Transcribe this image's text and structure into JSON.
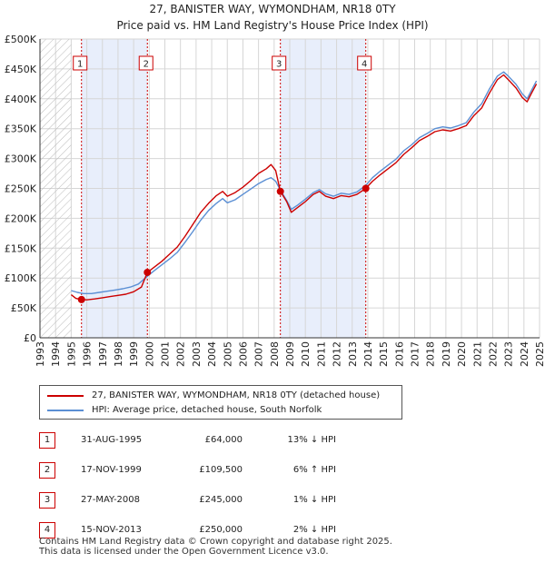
{
  "chart_data": {
    "type": "line",
    "title": "27, BANISTER WAY, WYMONDHAM, NR18 0TY",
    "subtitle": "Price paid vs. HM Land Registry's House Price Index (HPI)",
    "xlabel": "",
    "ylabel": "",
    "xlim": [
      1993,
      2025
    ],
    "ylim": [
      0,
      500000
    ],
    "x_ticks": [
      "1993",
      "1994",
      "1995",
      "1996",
      "1997",
      "1998",
      "1999",
      "2000",
      "2001",
      "2002",
      "2003",
      "2004",
      "2005",
      "2006",
      "2007",
      "2008",
      "2009",
      "2010",
      "2011",
      "2012",
      "2013",
      "2014",
      "2015",
      "2016",
      "2017",
      "2018",
      "2019",
      "2020",
      "2021",
      "2022",
      "2023",
      "2024",
      "2025"
    ],
    "y_ticks": [
      {
        "value": 0,
        "label": "£0"
      },
      {
        "value": 50000,
        "label": "£50K"
      },
      {
        "value": 100000,
        "label": "£100K"
      },
      {
        "value": 150000,
        "label": "£150K"
      },
      {
        "value": 200000,
        "label": "£200K"
      },
      {
        "value": 250000,
        "label": "£250K"
      },
      {
        "value": 300000,
        "label": "£300K"
      },
      {
        "value": 350000,
        "label": "£350K"
      },
      {
        "value": 400000,
        "label": "£400K"
      },
      {
        "value": 450000,
        "label": "£450K"
      },
      {
        "value": 500000,
        "label": "£500K"
      }
    ],
    "data_start": 1995.0,
    "shaded_periods": [
      [
        1995.66,
        1999.88
      ],
      [
        2008.4,
        2013.87
      ]
    ],
    "series": [
      {
        "name": "27, BANISTER WAY, WYMONDHAM, NR18 0TY (detached house)",
        "color": "#cc0000",
        "points": [
          [
            1995.0,
            72000
          ],
          [
            1995.3,
            66000
          ],
          [
            1995.66,
            64000
          ],
          [
            1996.0,
            63500
          ],
          [
            1996.5,
            65000
          ],
          [
            1997.0,
            67000
          ],
          [
            1997.5,
            69000
          ],
          [
            1998.0,
            71000
          ],
          [
            1998.5,
            73000
          ],
          [
            1999.0,
            77000
          ],
          [
            1999.5,
            85000
          ],
          [
            1999.88,
            109500
          ],
          [
            2000.3,
            118000
          ],
          [
            2000.8,
            128000
          ],
          [
            2001.3,
            140000
          ],
          [
            2001.8,
            152000
          ],
          [
            2002.3,
            170000
          ],
          [
            2002.8,
            190000
          ],
          [
            2003.3,
            210000
          ],
          [
            2003.8,
            225000
          ],
          [
            2004.3,
            238000
          ],
          [
            2004.7,
            245000
          ],
          [
            2005.0,
            237000
          ],
          [
            2005.5,
            243000
          ],
          [
            2006.0,
            252000
          ],
          [
            2006.5,
            263000
          ],
          [
            2007.0,
            275000
          ],
          [
            2007.5,
            283000
          ],
          [
            2007.8,
            290000
          ],
          [
            2008.1,
            280000
          ],
          [
            2008.4,
            245000
          ],
          [
            2008.8,
            228000
          ],
          [
            2009.1,
            210000
          ],
          [
            2009.5,
            218000
          ],
          [
            2010.0,
            228000
          ],
          [
            2010.5,
            240000
          ],
          [
            2010.9,
            245000
          ],
          [
            2011.3,
            237000
          ],
          [
            2011.8,
            233000
          ],
          [
            2012.3,
            238000
          ],
          [
            2012.8,
            236000
          ],
          [
            2013.3,
            240000
          ],
          [
            2013.87,
            250000
          ],
          [
            2014.3,
            262000
          ],
          [
            2014.8,
            273000
          ],
          [
            2015.3,
            283000
          ],
          [
            2015.8,
            293000
          ],
          [
            2016.3,
            307000
          ],
          [
            2016.8,
            318000
          ],
          [
            2017.3,
            330000
          ],
          [
            2017.8,
            337000
          ],
          [
            2018.3,
            345000
          ],
          [
            2018.8,
            348000
          ],
          [
            2019.3,
            346000
          ],
          [
            2019.8,
            350000
          ],
          [
            2020.3,
            355000
          ],
          [
            2020.8,
            372000
          ],
          [
            2021.3,
            385000
          ],
          [
            2021.8,
            410000
          ],
          [
            2022.3,
            432000
          ],
          [
            2022.7,
            440000
          ],
          [
            2023.0,
            432000
          ],
          [
            2023.5,
            418000
          ],
          [
            2023.9,
            402000
          ],
          [
            2024.2,
            395000
          ],
          [
            2024.5,
            410000
          ],
          [
            2024.8,
            425000
          ]
        ]
      },
      {
        "name": "HPI: Average price, detached house, South Norfolk",
        "color": "#5b8fd4",
        "points": [
          [
            1995.0,
            79000
          ],
          [
            1995.4,
            76000
          ],
          [
            1995.8,
            74000
          ],
          [
            1996.3,
            74000
          ],
          [
            1996.8,
            76000
          ],
          [
            1997.3,
            78000
          ],
          [
            1997.8,
            80000
          ],
          [
            1998.3,
            82000
          ],
          [
            1998.8,
            85000
          ],
          [
            1999.3,
            90000
          ],
          [
            1999.88,
            103000
          ],
          [
            2000.3,
            112000
          ],
          [
            2000.8,
            122000
          ],
          [
            2001.3,
            132000
          ],
          [
            2001.8,
            143000
          ],
          [
            2002.3,
            160000
          ],
          [
            2002.8,
            178000
          ],
          [
            2003.3,
            197000
          ],
          [
            2003.8,
            213000
          ],
          [
            2004.3,
            225000
          ],
          [
            2004.7,
            233000
          ],
          [
            2005.0,
            226000
          ],
          [
            2005.5,
            231000
          ],
          [
            2006.0,
            240000
          ],
          [
            2006.5,
            249000
          ],
          [
            2007.0,
            258000
          ],
          [
            2007.5,
            265000
          ],
          [
            2007.8,
            268000
          ],
          [
            2008.1,
            262000
          ],
          [
            2008.4,
            247000
          ],
          [
            2008.8,
            230000
          ],
          [
            2009.1,
            215000
          ],
          [
            2009.5,
            222000
          ],
          [
            2010.0,
            232000
          ],
          [
            2010.5,
            243000
          ],
          [
            2010.9,
            248000
          ],
          [
            2011.3,
            241000
          ],
          [
            2011.8,
            237000
          ],
          [
            2012.3,
            242000
          ],
          [
            2012.8,
            240000
          ],
          [
            2013.3,
            244000
          ],
          [
            2013.87,
            255000
          ],
          [
            2014.3,
            268000
          ],
          [
            2014.8,
            279000
          ],
          [
            2015.3,
            289000
          ],
          [
            2015.8,
            299000
          ],
          [
            2016.3,
            313000
          ],
          [
            2016.8,
            323000
          ],
          [
            2017.3,
            335000
          ],
          [
            2017.8,
            342000
          ],
          [
            2018.3,
            350000
          ],
          [
            2018.8,
            353000
          ],
          [
            2019.3,
            351000
          ],
          [
            2019.8,
            355000
          ],
          [
            2020.3,
            360000
          ],
          [
            2020.8,
            378000
          ],
          [
            2021.3,
            392000
          ],
          [
            2021.8,
            417000
          ],
          [
            2022.3,
            438000
          ],
          [
            2022.7,
            445000
          ],
          [
            2023.0,
            438000
          ],
          [
            2023.5,
            424000
          ],
          [
            2023.9,
            408000
          ],
          [
            2024.2,
            400000
          ],
          [
            2024.5,
            415000
          ],
          [
            2024.8,
            430000
          ]
        ]
      }
    ],
    "sale_markers": [
      {
        "label": "1",
        "x": 1995.66,
        "y": 64000
      },
      {
        "label": "2",
        "x": 1999.88,
        "y": 109500
      },
      {
        "label": "3",
        "x": 2008.4,
        "y": 245000
      },
      {
        "label": "4",
        "x": 2013.87,
        "y": 250000
      }
    ]
  },
  "legend": {
    "property_label": "27, BANISTER WAY, WYMONDHAM, NR18 0TY (detached house)",
    "hpi_label": "HPI: Average price, detached house, South Norfolk"
  },
  "sales": [
    {
      "num": "1",
      "date": "31-AUG-1995",
      "price": "£64,000",
      "hpi": "13% ↓ HPI"
    },
    {
      "num": "2",
      "date": "17-NOV-1999",
      "price": "£109,500",
      "hpi": "6% ↑ HPI"
    },
    {
      "num": "3",
      "date": "27-MAY-2008",
      "price": "£245,000",
      "hpi": "1% ↓ HPI"
    },
    {
      "num": "4",
      "date": "15-NOV-2013",
      "price": "£250,000",
      "hpi": "2% ↓ HPI"
    }
  ],
  "footer": {
    "line1": "Contains HM Land Registry data © Crown copyright and database right 2025.",
    "line2": "This data is licensed under the Open Government Licence v3.0."
  },
  "colors": {
    "property": "#cc0000",
    "hpi": "#5b8fd4",
    "shade": "#e8eefb",
    "grid": "#d6d6d6"
  }
}
